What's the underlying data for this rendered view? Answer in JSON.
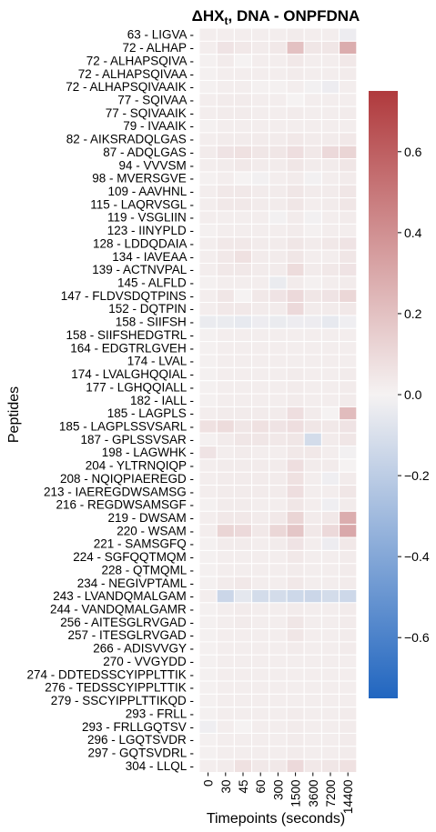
{
  "chart_data": {
    "type": "heatmap",
    "title": "ΔHXₜ, DNA - ONPFDNA",
    "title_main": "ΔHX",
    "title_sub": "t",
    "title_rest": ", DNA - ONPFDNA",
    "xlabel": "Timepoints (seconds)",
    "ylabel": "Peptides",
    "x": [
      "0",
      "30",
      "45",
      "60",
      "300",
      "1500",
      "3600",
      "7200",
      "14400"
    ],
    "y": [
      "63 - LIGVA",
      "72 - ALHAP",
      "72 - ALHAPSQIVA",
      "72 - ALHAPSQIVAA",
      "72 - ALHAPSQIVAAIK",
      "77 - SQIVAA",
      "77 - SQIVAAIK",
      "79 - IVAAIK",
      "82 - AIKSRADQLGAS",
      "87 - ADQLGAS",
      "94 - VVVSM",
      "98 - MVERSGVE",
      "109 - AAVHNL",
      "115 - LAQRVSGL",
      "119 - VSGLIIN",
      "123 - IINYPLD",
      "128 - LDDQDAIA",
      "134 - IAVEAA",
      "139 - ACTNVPAL",
      "145 - ALFLD",
      "147 - FLDVSDQTPINS",
      "152 - DQTPIN",
      "158 - SIIFSH",
      "158 - SIIFSHEDGTRL",
      "164 - EDGTRLGVEH",
      "174 - LVAL",
      "174 - LVALGHQQIAL",
      "177 - LGHQQIALL",
      "182 - IALL",
      "185 - LAGPLS",
      "185 - LAGPLSSVSARL",
      "187 - GPLSSVSAR",
      "198 - LAGWHK",
      "204 - YLTRNQIQP",
      "208 - NQIQPIAEREGD",
      "213 - IAEREGDWSAMSG",
      "216 - REGDWSAMSGF",
      "219 - DWSAM",
      "220 - WSAM",
      "221 - SAMSGFQ",
      "224 - SGFQQTMQM",
      "228 - QTMQML",
      "234 - NEGIVPTAML",
      "243 - LVANDQMALGAM",
      "244 - VANDQMALGAMR",
      "256 - AITESGLRVGAD",
      "257 - ITESGLRVGAD",
      "266 - ADISVVGY",
      "270 - VVGYDD",
      "274 - DDTEDSSCYIPPLTTIK",
      "276 - TEDSSCYIPPLTTIK",
      "279 - SSCYIPPLTTIKQD",
      "293 - FRLL",
      "293 - FRLLGQTSV",
      "296 - LGQTSVDR",
      "297 - GQTSVDRL",
      "304 - LLQL"
    ],
    "values": [
      [
        0.02,
        0.02,
        0.02,
        0.02,
        0.02,
        0.03,
        0.02,
        0.02,
        -0.03
      ],
      [
        0.02,
        0.06,
        0.04,
        0.03,
        0.04,
        0.2,
        0.05,
        0.05,
        0.28
      ],
      [
        0.01,
        0.03,
        0.0,
        0.02,
        0.02,
        0.04,
        0.02,
        0.02,
        0.04
      ],
      [
        0.01,
        0.02,
        0.02,
        0.02,
        0.02,
        0.03,
        0.02,
        0.02,
        0.03
      ],
      [
        0.01,
        0.02,
        0.02,
        0.01,
        0.01,
        0.02,
        -0.01,
        -0.03,
        0.02
      ],
      [
        0.02,
        0.03,
        0.03,
        0.02,
        0.02,
        0.0,
        0.02,
        0.02,
        0.02
      ],
      [
        0.02,
        0.03,
        0.03,
        0.02,
        0.02,
        0.03,
        0.02,
        0.02,
        0.03
      ],
      [
        0.01,
        0.02,
        0.02,
        0.02,
        0.02,
        0.02,
        0.02,
        0.02,
        0.02
      ],
      [
        0.02,
        0.03,
        0.03,
        0.03,
        0.03,
        0.04,
        0.03,
        0.03,
        0.04
      ],
      [
        0.03,
        0.06,
        0.07,
        0.05,
        0.05,
        0.08,
        0.04,
        0.1,
        0.12
      ],
      [
        0.02,
        0.03,
        0.04,
        0.03,
        0.03,
        0.05,
        0.03,
        0.03,
        0.05
      ],
      [
        0.01,
        0.02,
        0.0,
        -0.01,
        0.02,
        0.03,
        -0.01,
        0.02,
        0.03
      ],
      [
        0.02,
        0.04,
        0.04,
        0.03,
        0.03,
        0.05,
        0.03,
        0.03,
        0.05
      ],
      [
        0.02,
        0.04,
        0.04,
        0.03,
        0.03,
        0.05,
        0.02,
        0.03,
        0.05
      ],
      [
        0.02,
        0.02,
        0.02,
        0.02,
        -0.01,
        0.03,
        -0.01,
        0.02,
        0.03
      ],
      [
        0.01,
        0.02,
        0.02,
        0.02,
        0.02,
        0.03,
        0.01,
        0.02,
        0.02
      ],
      [
        0.02,
        0.04,
        0.04,
        0.03,
        0.03,
        0.05,
        0.03,
        0.04,
        0.06
      ],
      [
        0.02,
        0.04,
        0.07,
        0.03,
        0.03,
        0.05,
        0.02,
        0.02,
        0.05
      ],
      [
        0.02,
        0.04,
        0.04,
        0.03,
        0.03,
        0.09,
        0.03,
        0.04,
        0.06
      ],
      [
        0.01,
        0.02,
        0.02,
        0.02,
        -0.04,
        0.03,
        0.01,
        0.02,
        0.03
      ],
      [
        0.02,
        0.05,
        0.0,
        0.04,
        0.06,
        0.1,
        0.05,
        0.06,
        0.11
      ],
      [
        0.02,
        0.04,
        0.04,
        0.03,
        0.03,
        0.1,
        0.03,
        0.03,
        0.04
      ],
      [
        -0.04,
        -0.04,
        -0.05,
        -0.03,
        -0.04,
        -0.03,
        -0.03,
        -0.05,
        -0.02
      ],
      [
        0.01,
        0.02,
        0.02,
        0.02,
        0.02,
        0.02,
        0.02,
        0.02,
        0.02
      ],
      [
        0.01,
        0.02,
        0.02,
        0.02,
        0.02,
        0.02,
        0.02,
        0.02,
        0.02
      ],
      [
        0.01,
        0.02,
        0.02,
        0.02,
        0.02,
        0.02,
        0.02,
        0.02,
        0.02
      ],
      [
        0.01,
        0.02,
        0.02,
        0.02,
        0.02,
        0.03,
        0.02,
        0.02,
        0.03
      ],
      [
        0.01,
        0.02,
        0.02,
        0.02,
        0.02,
        0.03,
        0.02,
        0.02,
        0.03
      ],
      [
        0.01,
        0.02,
        0.02,
        0.02,
        0.02,
        0.03,
        0.02,
        0.02,
        0.03
      ],
      [
        0.02,
        0.03,
        0.03,
        0.03,
        0.03,
        0.08,
        0.03,
        0.0,
        0.22
      ],
      [
        0.07,
        0.09,
        0.05,
        0.07,
        0.06,
        0.08,
        0.05,
        0.04,
        0.06
      ],
      [
        0.01,
        0.03,
        0.05,
        0.05,
        0.04,
        0.05,
        -0.12,
        0.03,
        0.05
      ],
      [
        0.06,
        0.02,
        0.03,
        0.02,
        0.02,
        0.04,
        0.04,
        0.02,
        -0.01
      ],
      [
        0.02,
        0.03,
        0.03,
        0.03,
        0.03,
        0.08,
        0.03,
        0.03,
        0.0
      ],
      [
        0.02,
        0.03,
        0.03,
        0.03,
        0.03,
        0.07,
        0.02,
        -0.02,
        0.03
      ],
      [
        0.02,
        0.03,
        0.03,
        0.03,
        0.03,
        0.08,
        0.02,
        0.02,
        0.05
      ],
      [
        0.01,
        0.03,
        0.03,
        0.02,
        0.02,
        0.05,
        0.02,
        -0.02,
        0.03
      ],
      [
        0.02,
        0.04,
        0.04,
        0.03,
        0.04,
        0.12,
        0.03,
        0.04,
        0.28
      ],
      [
        0.02,
        0.12,
        0.1,
        0.04,
        0.11,
        0.18,
        0.04,
        0.1,
        0.3
      ],
      [
        0.01,
        0.03,
        0.03,
        0.02,
        0.03,
        0.06,
        0.02,
        -0.03,
        0.04
      ],
      [
        0.01,
        0.02,
        0.02,
        0.02,
        0.02,
        0.04,
        0.02,
        0.02,
        0.03
      ],
      [
        0.01,
        0.02,
        0.02,
        0.02,
        0.02,
        0.03,
        0.02,
        0.02,
        0.03
      ],
      [
        0.01,
        0.03,
        0.04,
        0.02,
        0.02,
        0.04,
        0.02,
        0.02,
        0.03
      ],
      [
        0.02,
        -0.15,
        -0.06,
        -0.12,
        -0.12,
        -0.14,
        -0.15,
        -0.12,
        -0.14
      ],
      [
        0.01,
        0.02,
        0.03,
        0.02,
        0.02,
        0.03,
        0.02,
        0.02,
        0.03
      ],
      [
        0.01,
        0.02,
        0.03,
        0.02,
        0.02,
        0.05,
        0.02,
        0.02,
        0.03
      ],
      [
        0.01,
        0.02,
        0.02,
        0.02,
        0.02,
        0.05,
        0.02,
        0.02,
        0.03
      ],
      [
        0.01,
        0.02,
        0.02,
        0.02,
        0.02,
        0.03,
        0.02,
        0.02,
        0.03
      ],
      [
        0.01,
        0.02,
        0.02,
        0.02,
        0.02,
        0.02,
        0.02,
        0.02,
        0.02
      ],
      [
        0.01,
        0.02,
        0.02,
        0.02,
        0.02,
        0.02,
        0.02,
        0.02,
        0.02
      ],
      [
        0.01,
        0.02,
        0.02,
        0.02,
        0.02,
        0.02,
        0.02,
        0.02,
        0.02
      ],
      [
        0.01,
        0.02,
        0.02,
        0.02,
        0.02,
        0.02,
        0.02,
        0.02,
        0.02
      ],
      [
        0.01,
        0.02,
        0.02,
        0.02,
        0.02,
        0.03,
        0.02,
        0.02,
        0.03
      ],
      [
        -0.02,
        0.02,
        0.0,
        0.02,
        0.02,
        0.03,
        0.02,
        0.02,
        0.03
      ],
      [
        0.01,
        0.02,
        0.02,
        0.02,
        0.02,
        0.03,
        0.02,
        0.02,
        0.03
      ],
      [
        0.01,
        0.02,
        0.02,
        0.02,
        0.02,
        0.03,
        0.02,
        0.02,
        0.03
      ],
      [
        0.02,
        0.03,
        0.07,
        0.04,
        0.04,
        0.1,
        0.04,
        0.05,
        0.07
      ]
    ],
    "colorbar": {
      "vmin": -0.75,
      "vmax": 0.75,
      "ticks": [
        "0.6",
        "0.4",
        "0.2",
        "0.0",
        "−0.2",
        "−0.4",
        "−0.6"
      ],
      "tick_values": [
        0.6,
        0.4,
        0.2,
        0.0,
        -0.2,
        -0.4,
        -0.6
      ],
      "colormap": "vlag",
      "low_color": "#2166c0",
      "mid_color": "#f5f2f2",
      "high_color": "#b03a3d"
    },
    "cell_border_color": "#ffffff",
    "grid": false
  }
}
